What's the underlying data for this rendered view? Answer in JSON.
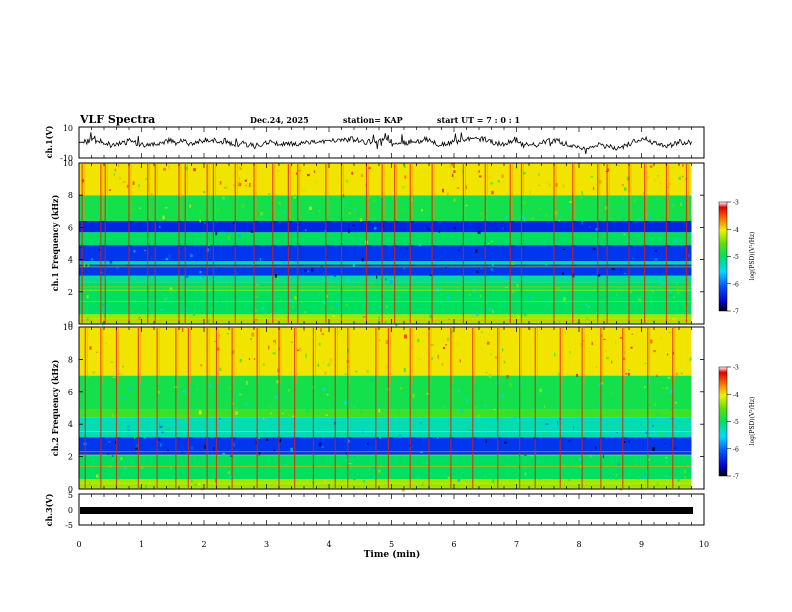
{
  "header": {
    "title": "VLF Spectra",
    "date": "Dec.24, 2025",
    "station": "station= KAP",
    "start": "start  UT =   7 : 0  : 1"
  },
  "chart_data": [
    {
      "type": "line",
      "panel": "ch1-waveform",
      "ylabel": "ch.1(V)",
      "ylim": [
        -10,
        10
      ],
      "yticks": [
        "10",
        "-10"
      ],
      "xlim": [
        0,
        10
      ],
      "trace_note": "noisy waveform oscillating roughly between -5 and 5 V, ending near 9.8 min"
    },
    {
      "type": "heatmap",
      "panel": "ch1-spectrogram",
      "ylabel": "ch.1 Frequency (kHz)",
      "ylim": [
        0,
        10
      ],
      "yticks": [
        "0",
        "2",
        "4",
        "6",
        "8",
        "10"
      ],
      "xlim": [
        0,
        10
      ],
      "colorbar": {
        "label": "log(PSD)(V²/Hz)",
        "range": [
          -7,
          -3
        ],
        "ticks": [
          "-3",
          "-4",
          "-5",
          "-6",
          "-7"
        ]
      },
      "bands": [
        {
          "from": 0.0,
          "to": 0.6,
          "level": -4.3
        },
        {
          "from": 0.6,
          "to": 2.6,
          "level": -5.0
        },
        {
          "from": 2.6,
          "to": 3.0,
          "level": -5.2
        },
        {
          "from": 3.0,
          "to": 3.7,
          "level": -6.3
        },
        {
          "from": 3.7,
          "to": 3.9,
          "level": -5.2
        },
        {
          "from": 3.9,
          "to": 4.9,
          "level": -6.3
        },
        {
          "from": 4.9,
          "to": 5.7,
          "level": -5.0
        },
        {
          "from": 5.7,
          "to": 6.4,
          "level": -6.4
        },
        {
          "from": 6.4,
          "to": 8.0,
          "level": -4.9
        },
        {
          "from": 8.0,
          "to": 10.0,
          "level": -4.0
        }
      ],
      "sferic_times": [
        0.05,
        0.35,
        0.42,
        0.8,
        1.1,
        1.22,
        1.6,
        1.7,
        2.05,
        2.15,
        2.5,
        2.8,
        3.1,
        3.35,
        3.5,
        3.95,
        4.2,
        4.6,
        4.85,
        5.05,
        5.3,
        5.65,
        6.15,
        6.5,
        6.9,
        7.08,
        7.6,
        7.9,
        8.3,
        8.45,
        8.8,
        9.05,
        9.4,
        9.72
      ]
    },
    {
      "type": "heatmap",
      "panel": "ch2-spectrogram",
      "ylabel": "ch.2 Frequency (kHz)",
      "ylim": [
        0,
        10
      ],
      "yticks": [
        "0",
        "2",
        "4",
        "6",
        "8",
        "10"
      ],
      "xlim": [
        0,
        10
      ],
      "colorbar": {
        "label": "log(PSD)(V²/Hz)",
        "range": [
          -7,
          -3
        ],
        "ticks": [
          "-3",
          "-4",
          "-5",
          "-6",
          "-7"
        ]
      },
      "bands": [
        {
          "from": 0.0,
          "to": 0.6,
          "level": -4.3
        },
        {
          "from": 0.6,
          "to": 2.1,
          "level": -5.0
        },
        {
          "from": 2.1,
          "to": 3.2,
          "level": -6.3
        },
        {
          "from": 3.2,
          "to": 4.4,
          "level": -5.3
        },
        {
          "from": 4.4,
          "to": 4.9,
          "level": -4.7
        },
        {
          "from": 4.9,
          "to": 7.0,
          "level": -4.9
        },
        {
          "from": 7.0,
          "to": 10.0,
          "level": -4.0
        }
      ],
      "sferic_times": [
        0.1,
        0.35,
        0.6,
        0.95,
        1.25,
        1.55,
        1.75,
        2.05,
        2.2,
        2.45,
        2.85,
        3.2,
        3.45,
        3.75,
        4.1,
        4.3,
        4.75,
        4.95,
        5.3,
        5.6,
        5.95,
        6.3,
        6.7,
        7.05,
        7.3,
        7.7,
        8.05,
        8.35,
        8.7,
        9.1,
        9.5
      ]
    },
    {
      "type": "line",
      "panel": "ch3-waveform",
      "ylabel": "ch.3(V)",
      "ylim": [
        -5,
        5
      ],
      "yticks": [
        "5",
        "0",
        "-5"
      ],
      "xlim": [
        0,
        10
      ],
      "trace_note": "thick flat trace near -1 V across 0 to 9.8 min"
    }
  ],
  "xaxis": {
    "label": "Time  (min)",
    "ticks": [
      "0",
      "1",
      "2",
      "3",
      "4",
      "5",
      "6",
      "7",
      "8",
      "9",
      "10"
    ]
  }
}
